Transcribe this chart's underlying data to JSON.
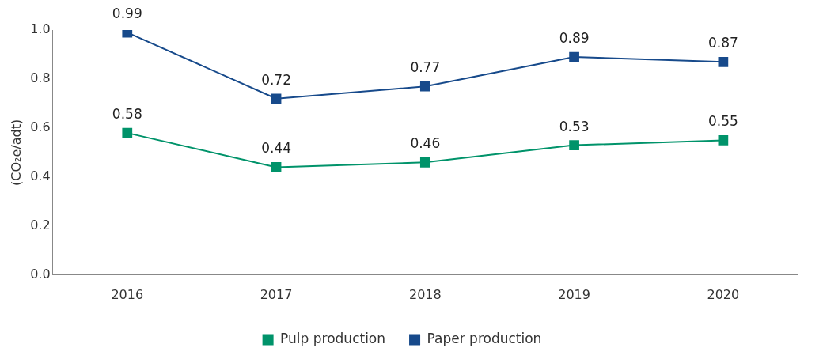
{
  "chart_data": {
    "type": "line",
    "ylabel": "(CO₂e/adt)",
    "categories": [
      "2016",
      "2017",
      "2018",
      "2019",
      "2020"
    ],
    "series": [
      {
        "name": "Pulp production",
        "color": "#00936a",
        "values": [
          0.58,
          0.44,
          0.46,
          0.53,
          0.55
        ]
      },
      {
        "name": "Paper production",
        "color": "#174a8b",
        "values": [
          0.99,
          0.72,
          0.77,
          0.89,
          0.87
        ]
      }
    ],
    "ylim": [
      0,
      1
    ],
    "yticks": [
      {
        "value": 0,
        "label": "0.0"
      },
      0.2,
      0.4,
      0.6,
      0.8,
      {
        "value": 1,
        "label": "1.0"
      }
    ],
    "grid": false,
    "legend": "bottom",
    "marker": "square",
    "line_style": "solid",
    "data_labels": true
  }
}
